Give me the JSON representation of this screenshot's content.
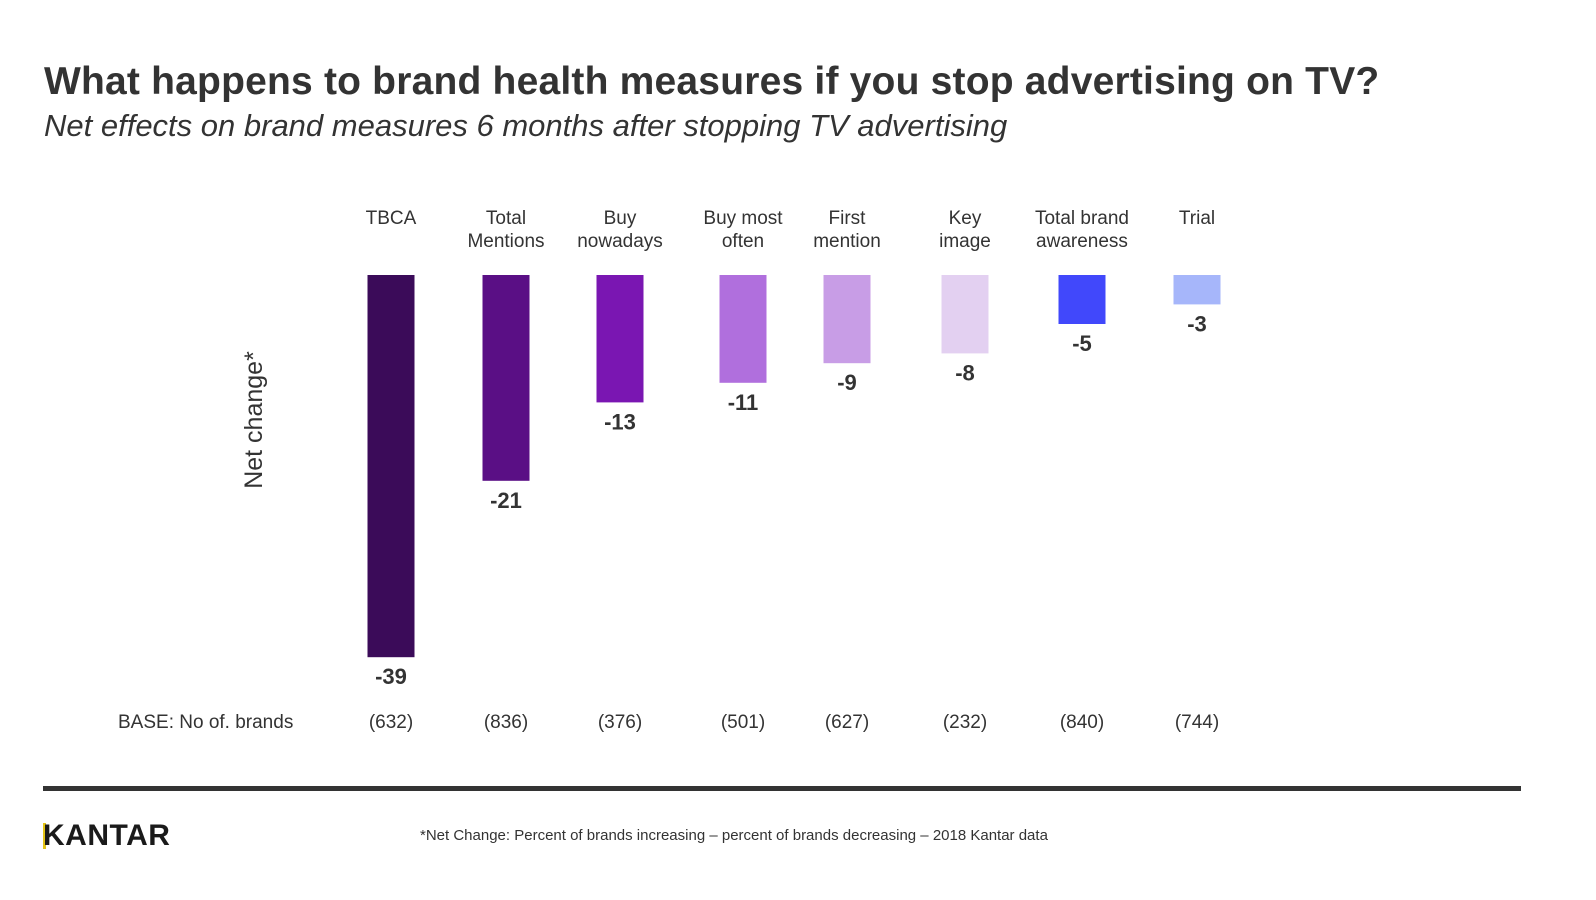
{
  "header": {
    "title": "What happens to brand health measures if you stop advertising on TV?",
    "subtitle": "Net effects on brand measures 6 months after stopping TV advertising"
  },
  "chart_data": {
    "type": "bar",
    "title": "What happens to brand health measures if you stop advertising on TV?",
    "subtitle": "Net effects on brand measures 6 months after stopping TV advertising",
    "ylabel": "Net change*",
    "xlabel": "",
    "categories": [
      [
        "TBCA"
      ],
      [
        "Total",
        "Mentions"
      ],
      [
        "Buy",
        "nowadays"
      ],
      [
        "Buy most",
        "often"
      ],
      [
        "First",
        "mention"
      ],
      [
        "Key",
        "image"
      ],
      [
        "Total brand",
        "awareness"
      ],
      [
        "Trial"
      ]
    ],
    "values": [
      -39,
      -21,
      -13,
      -11,
      -9,
      -8,
      -5,
      -3
    ],
    "value_labels": [
      "-39",
      "-21",
      "-13",
      "-11",
      "-9",
      "-8",
      "-5",
      "-3"
    ],
    "colors": [
      "#3b0b59",
      "#5a0f85",
      "#7a16b2",
      "#b06fdd",
      "#c89de6",
      "#e3d0f1",
      "#4148fb",
      "#a6b6fa"
    ],
    "ylim": [
      -40,
      0
    ],
    "grid": false,
    "legend": "none",
    "base": {
      "label": "BASE: No of. brands",
      "values": [
        "(632)",
        "(836)",
        "(376)",
        "(501)",
        "(627)",
        "(232)",
        "(840)",
        "(744)"
      ]
    }
  },
  "footer": {
    "logo": "KANTAR",
    "footnote": "*Net Change: Percent of brands increasing – percent of brands decreasing – 2018 Kantar data"
  }
}
